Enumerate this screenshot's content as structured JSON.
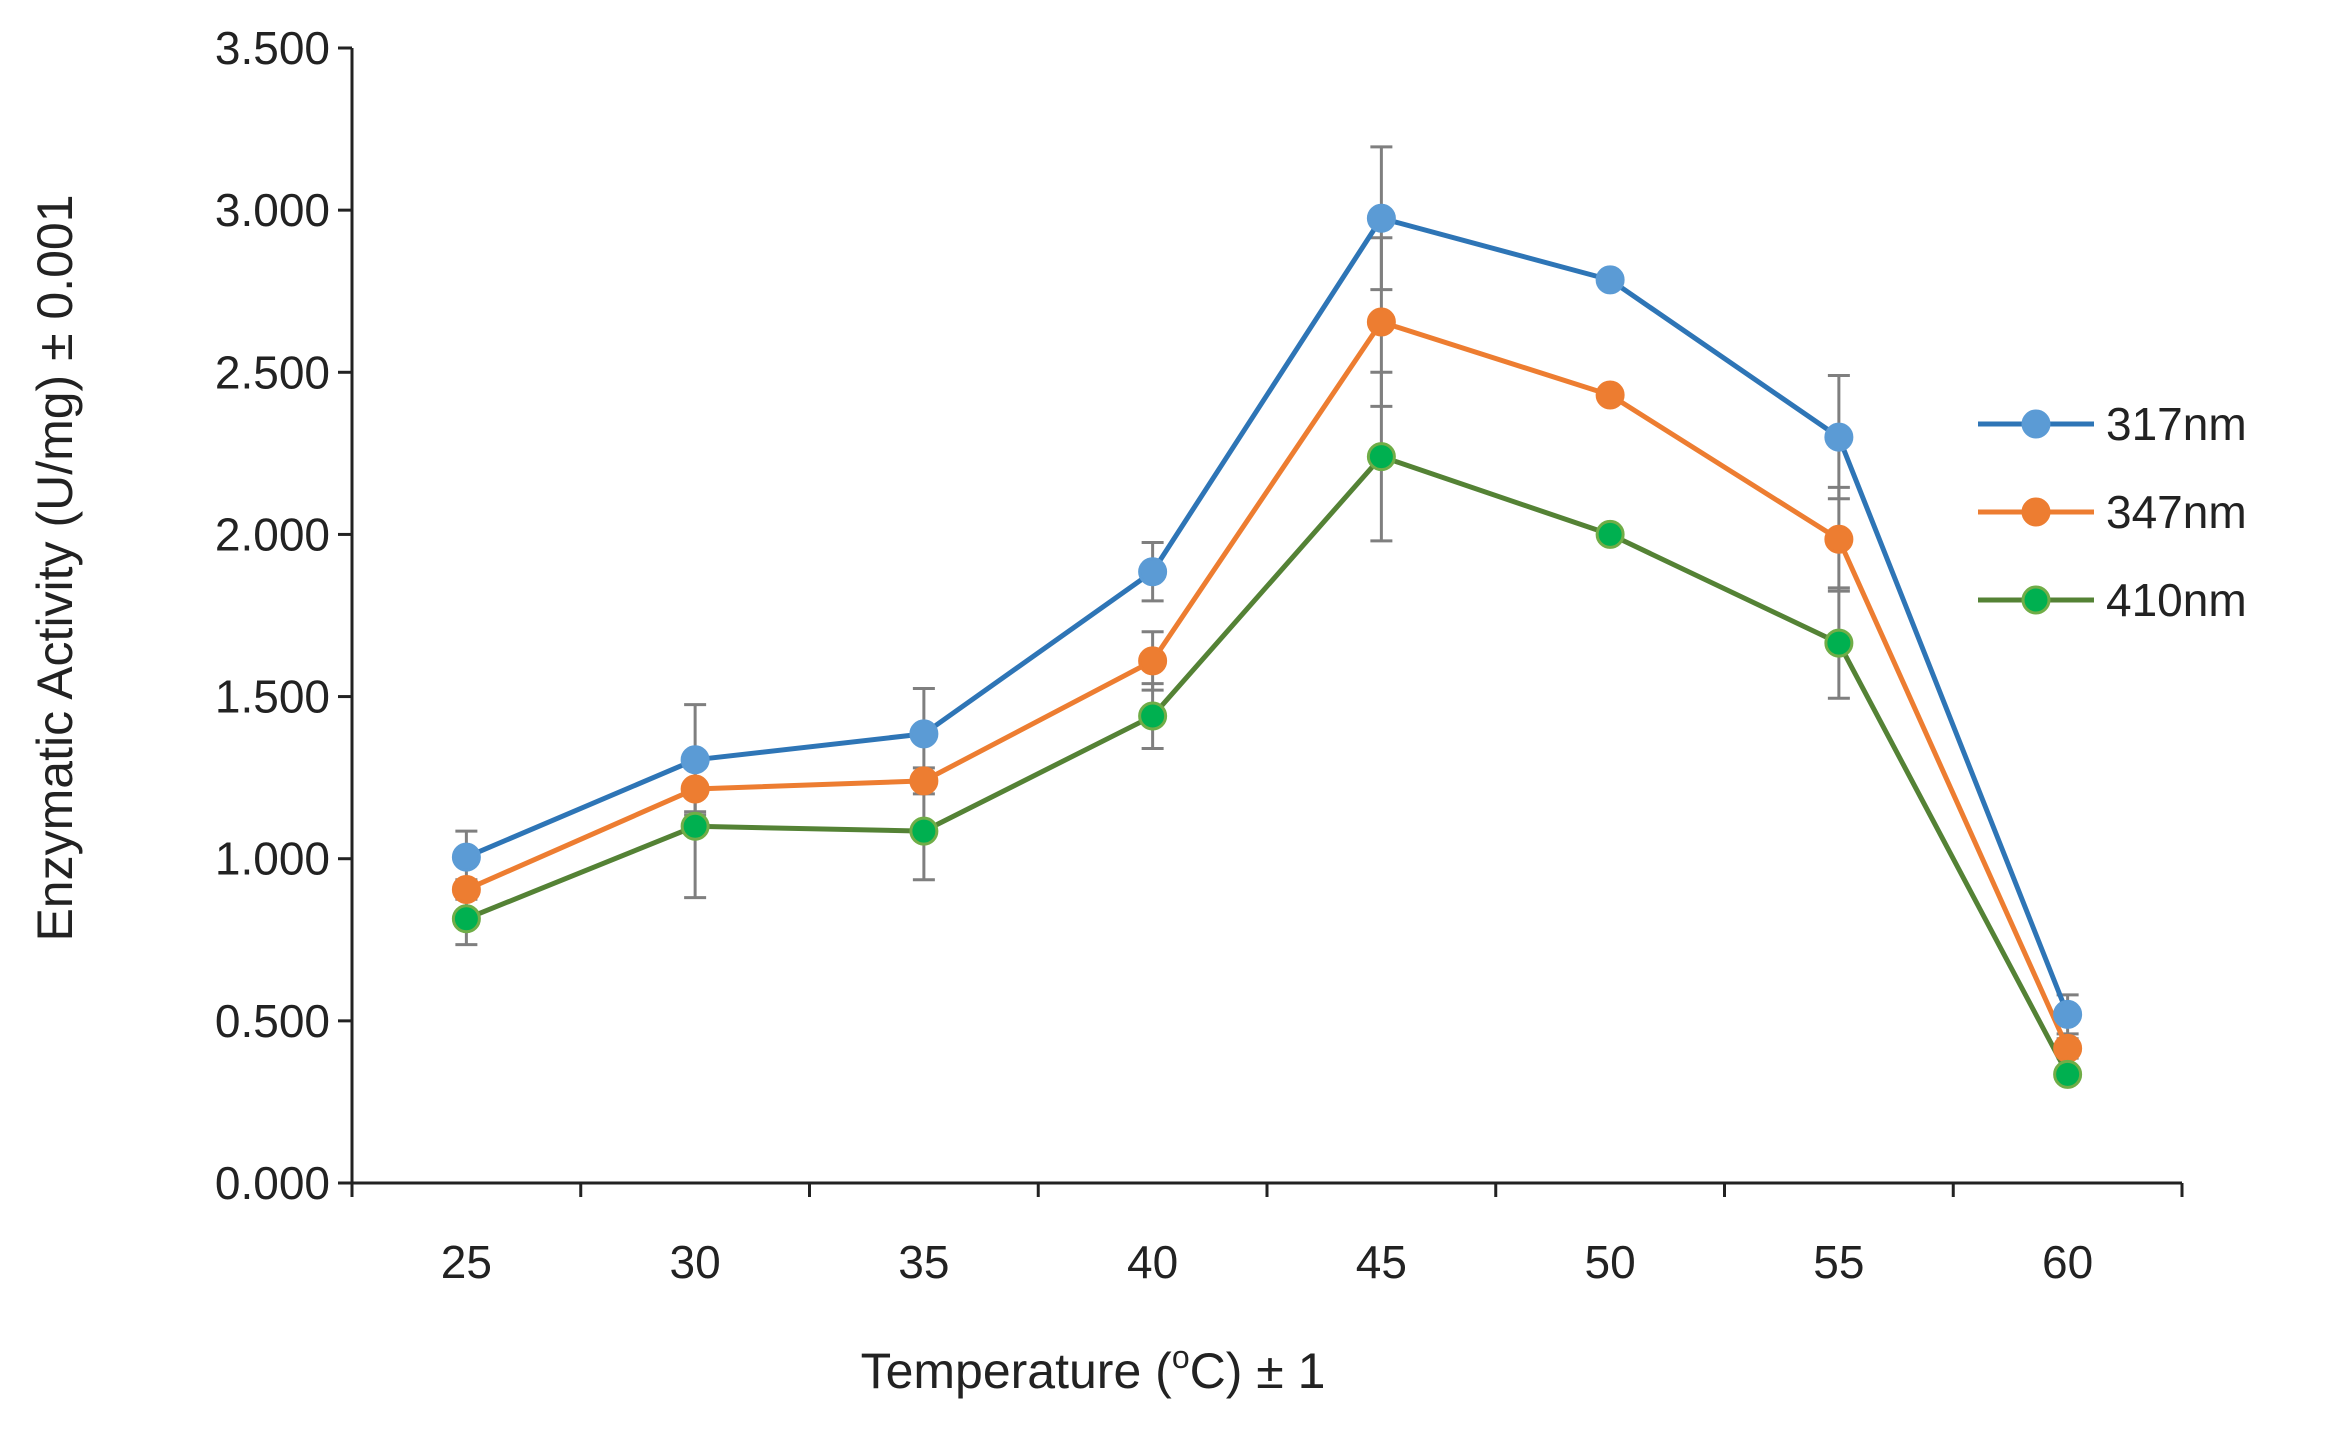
{
  "chart_data": {
    "type": "line",
    "title": "",
    "xlabel": "Temperature (°C) ± 1",
    "xlabel_parts": {
      "before": "Temperature (",
      "superscript": "o",
      "after": "C) ± 1"
    },
    "ylabel": "Enzymatic Activity (U/mg) ± 0.001",
    "categories": [
      "25",
      "30",
      "35",
      "40",
      "45",
      "50",
      "55",
      "60"
    ],
    "y_ticks": [
      "0.000",
      "0.500",
      "1.000",
      "1.500",
      "2.000",
      "2.500",
      "3.000",
      "3.500"
    ],
    "ylim": [
      0,
      3.5
    ],
    "grid": false,
    "legend_position": "right",
    "series": [
      {
        "name": "317nm",
        "line_color": "#2E75B6",
        "marker_color": "#5B9BD5",
        "values": [
          1.005,
          1.305,
          1.385,
          1.885,
          2.975,
          2.785,
          2.3,
          0.52
        ],
        "errors": [
          0.08,
          0.17,
          0.14,
          0.09,
          0.22,
          0.01,
          0.19,
          0.06
        ]
      },
      {
        "name": "347nm",
        "line_color": "#ED7D31",
        "marker_color": "#ED7D31",
        "values": [
          0.905,
          1.215,
          1.24,
          1.61,
          2.655,
          2.43,
          1.985,
          0.415
        ],
        "errors": [
          0.03,
          0.07,
          0.04,
          0.09,
          0.26,
          0.02,
          0.16,
          0.03
        ]
      },
      {
        "name": "410nm",
        "line_color": "#548235",
        "marker_color": "#00B050",
        "marker_edge": "#70AD47",
        "values": [
          0.815,
          1.1,
          1.085,
          1.44,
          2.24,
          2.0,
          1.665,
          0.335
        ],
        "errors": [
          0.08,
          0.22,
          0.15,
          0.1,
          0.26,
          0.01,
          0.17,
          0.02
        ]
      }
    ]
  }
}
